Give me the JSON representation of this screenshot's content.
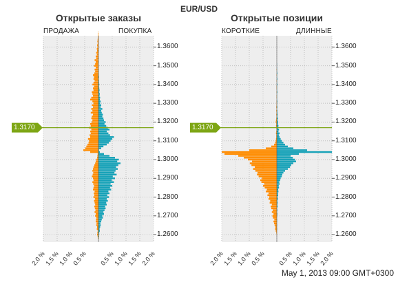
{
  "symbol": "EUR/USD",
  "timestamp": "May 1, 2013 09:00 GMT+0300",
  "current_price_label": "1.3170",
  "colors": {
    "sell_short": "#ff8c00",
    "buy_long": "#17a2b8",
    "price_line": "#7ea615",
    "plot_bg": "#eeeeee",
    "grid": "#bdbdbd"
  },
  "panels": [
    {
      "title": "Открытые заказы",
      "left_label": "ПРОДАЖА",
      "right_label": "ПОКУПКА"
    },
    {
      "title": "Открытые позиции",
      "left_label": "КОРОТКИЕ",
      "right_label": "ДЛИННЫЕ"
    }
  ],
  "chart_data": [
    {
      "type": "bar",
      "orientation": "horizontal-diverging",
      "title": "Открытые заказы",
      "price_axis": {
        "min": 1.256,
        "max": 1.366,
        "ticks": [
          "1.2600",
          "1.2700",
          "1.2800",
          "1.2900",
          "1.3000",
          "1.3100",
          "1.3200",
          "1.3300",
          "1.3400",
          "1.3500",
          "1.3600"
        ]
      },
      "x_axis": {
        "ticks": [
          "2.0 %",
          "1.5 %",
          "1.0 %",
          "0.5 %",
          "0.5 %",
          "1.0 %",
          "1.5 %",
          "2.0 %"
        ],
        "range_pct": [
          -2.0,
          2.0
        ]
      },
      "current_price": 1.317,
      "price_step": 0.001,
      "price_start": 1.258,
      "series": [
        {
          "name": "ПРОДАЖА",
          "values": [
            0.02,
            0.03,
            0.05,
            0.04,
            0.03,
            0.06,
            0.05,
            0.08,
            0.07,
            0.1,
            0.09,
            0.08,
            0.12,
            0.1,
            0.14,
            0.11,
            0.13,
            0.15,
            0.12,
            0.14,
            0.16,
            0.13,
            0.18,
            0.15,
            0.17,
            0.14,
            0.2,
            0.18,
            0.16,
            0.19,
            0.22,
            0.18,
            0.2,
            0.24,
            0.21,
            0.19,
            0.22,
            0.2,
            0.18,
            0.15,
            0.12,
            0.1,
            0.08,
            0.05,
            0.04,
            0.03,
            0.3,
            0.55,
            0.48,
            0.44,
            0.4,
            0.36,
            0.34,
            0.38,
            0.3,
            0.32,
            0.28,
            0.3,
            0.26,
            0.34,
            0.28,
            0.3,
            0.25,
            0.22,
            0.26,
            0.24,
            0.2,
            0.28,
            0.22,
            0.26,
            0.2,
            0.24,
            0.18,
            0.22,
            0.3,
            0.26,
            0.2,
            0.22,
            0.24,
            0.18,
            0.2,
            0.16,
            0.22,
            0.18,
            0.14,
            0.18,
            0.16,
            0.2,
            0.15,
            0.12,
            0.14,
            0.1,
            0.16,
            0.12,
            0.1,
            0.14,
            0.08,
            0.1,
            0.06,
            0.08,
            0.05,
            0.06,
            0.04,
            0.05,
            0.03,
            0.04,
            0.03,
            0.02,
            0.02,
            0.02,
            0.01
          ]
        },
        {
          "name": "ПОКУПКА",
          "values": [
            0.01,
            0.02,
            0.02,
            0.03,
            0.05,
            0.04,
            0.06,
            0.08,
            0.07,
            0.1,
            0.12,
            0.16,
            0.14,
            0.2,
            0.18,
            0.22,
            0.26,
            0.24,
            0.3,
            0.28,
            0.34,
            0.3,
            0.38,
            0.32,
            0.4,
            0.36,
            0.46,
            0.42,
            0.5,
            0.44,
            0.56,
            0.48,
            0.6,
            0.52,
            0.66,
            0.58,
            0.62,
            0.7,
            0.64,
            0.72,
            0.8,
            0.68,
            0.74,
            0.6,
            0.4,
            0.2,
            0.05,
            0.02,
            0.1,
            0.18,
            0.3,
            0.38,
            0.44,
            0.5,
            0.56,
            0.42,
            0.36,
            0.3,
            0.4,
            0.34,
            0.28,
            0.22,
            0.26,
            0.2,
            0.18,
            0.14,
            0.16,
            0.12,
            0.1,
            0.14,
            0.08,
            0.1,
            0.06,
            0.08,
            0.05,
            0.06,
            0.04,
            0.05,
            0.03,
            0.04,
            0.03,
            0.02,
            0.03,
            0.02,
            0.02,
            0.01,
            0.02,
            0.01,
            0.01,
            0.01,
            0.01,
            0.0,
            0.01,
            0.0,
            0.01,
            0.0,
            0.01,
            0.0,
            0.0,
            0.0,
            0.01,
            0.0,
            0.0,
            0.0,
            0.0,
            0.0,
            0.0,
            0.0,
            0.0,
            0.0,
            0.0
          ]
        }
      ]
    },
    {
      "type": "bar",
      "orientation": "horizontal-diverging",
      "title": "Открытые позиции",
      "price_axis": {
        "min": 1.256,
        "max": 1.366,
        "ticks": [
          "1.2600",
          "1.2700",
          "1.2800",
          "1.2900",
          "1.3000",
          "1.3100",
          "1.3200",
          "1.3300",
          "1.3400",
          "1.3500",
          "1.3600"
        ]
      },
      "x_axis": {
        "ticks": [
          "2.0 %",
          "1.5 %",
          "1.0 %",
          "0.5 %",
          "0.5 %",
          "1.0 %",
          "1.5 %",
          "2.0 %"
        ],
        "range_pct": [
          -2.0,
          2.0
        ]
      },
      "current_price": 1.317,
      "price_step": 0.001,
      "price_start": 1.258,
      "series": [
        {
          "name": "КОРОТКИЕ",
          "values": [
            0.0,
            0.0,
            0.01,
            0.02,
            0.04,
            0.06,
            0.05,
            0.08,
            0.1,
            0.12,
            0.09,
            0.14,
            0.16,
            0.12,
            0.18,
            0.15,
            0.2,
            0.22,
            0.18,
            0.26,
            0.24,
            0.3,
            0.28,
            0.34,
            0.3,
            0.4,
            0.36,
            0.44,
            0.5,
            0.46,
            0.56,
            0.6,
            0.54,
            0.66,
            0.72,
            0.7,
            0.78,
            0.86,
            0.8,
            0.92,
            0.98,
            0.9,
            1.05,
            1.2,
            1.4,
            1.9,
            2.05,
            1.0,
            0.4,
            0.2,
            0.1,
            0.06,
            0.04,
            0.03,
            0.02,
            0.02,
            0.03,
            0.02,
            0.01,
            0.02,
            0.03,
            0.02,
            0.04,
            0.03,
            0.02,
            0.01,
            0.02,
            0.01,
            0.02,
            0.01,
            0.02,
            0.01,
            0.01,
            0.01,
            0.0,
            0.01,
            0.01,
            0.0,
            0.01,
            0.0,
            0.01,
            0.01,
            0.0,
            0.0,
            0.01,
            0.0,
            0.0,
            0.01,
            0.0,
            0.0,
            0.01,
            0.0,
            0.0,
            0.0,
            0.0,
            0.0,
            0.0,
            0.0,
            0.0,
            0.0,
            0.0,
            0.0,
            0.0,
            0.0,
            0.0,
            0.0,
            0.0,
            0.0,
            0.0,
            0.0,
            0.0
          ]
        },
        {
          "name": "ДЛИННЫЕ",
          "values": [
            0.0,
            0.0,
            0.0,
            0.0,
            0.0,
            0.01,
            0.0,
            0.01,
            0.0,
            0.01,
            0.01,
            0.0,
            0.01,
            0.02,
            0.01,
            0.02,
            0.01,
            0.03,
            0.02,
            0.03,
            0.02,
            0.04,
            0.03,
            0.05,
            0.04,
            0.06,
            0.05,
            0.08,
            0.07,
            0.1,
            0.09,
            0.12,
            0.14,
            0.18,
            0.2,
            0.24,
            0.3,
            0.4,
            0.48,
            0.52,
            0.6,
            0.7,
            0.66,
            0.58,
            0.5,
            0.8,
            2.0,
            1.1,
            0.6,
            0.4,
            0.3,
            0.24,
            0.18,
            0.14,
            0.1,
            0.08,
            0.1,
            0.06,
            0.08,
            0.05,
            0.06,
            0.04,
            0.05,
            0.03,
            0.04,
            0.02,
            0.03,
            0.02,
            0.02,
            0.01,
            0.02,
            0.01,
            0.01,
            0.02,
            0.01,
            0.01,
            0.01,
            0.01,
            0.02,
            0.01,
            0.01,
            0.01,
            0.02,
            0.01,
            0.01,
            0.02,
            0.01,
            0.01,
            0.02,
            0.01,
            0.01,
            0.01,
            0.0,
            0.01,
            0.0,
            0.0,
            0.0,
            0.0,
            0.0,
            0.0,
            0.0,
            0.0,
            0.0,
            0.0,
            0.0,
            0.0,
            0.0,
            0.0,
            0.0,
            0.0,
            0.0
          ]
        }
      ]
    }
  ]
}
